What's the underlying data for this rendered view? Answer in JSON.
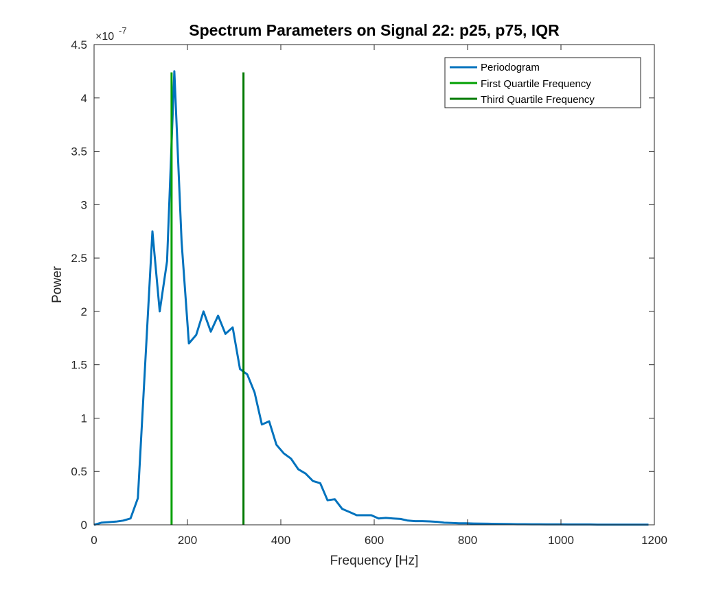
{
  "chart_data": {
    "type": "line",
    "title": "Spectrum Parameters on Signal 22: p25, p75, IQR",
    "xlabel": "Frequency [Hz]",
    "ylabel": "Power",
    "y_exponent_label": "×10",
    "y_exponent_power": "-7",
    "xlim": [
      0,
      1200
    ],
    "ylim": [
      0,
      4.5
    ],
    "x_ticks": [
      "0",
      "200",
      "400",
      "600",
      "800",
      "1000",
      "1200"
    ],
    "y_ticks": [
      "0",
      "0.5",
      "1",
      "1.5",
      "2",
      "2.5",
      "3",
      "3.5",
      "4",
      "4.5"
    ],
    "grid": false,
    "legend_position": "top-right",
    "series": [
      {
        "name": "Periodogram",
        "color": "#0072BD",
        "points": [
          [
            0,
            0.0
          ],
          [
            15.6,
            0.02
          ],
          [
            31.3,
            0.025
          ],
          [
            46.9,
            0.03
          ],
          [
            62.5,
            0.04
          ],
          [
            78.1,
            0.06
          ],
          [
            93.8,
            0.25
          ],
          [
            109.4,
            1.5
          ],
          [
            125,
            2.75
          ],
          [
            140.6,
            2.0
          ],
          [
            156.3,
            2.47
          ],
          [
            171.9,
            4.25
          ],
          [
            187.5,
            2.65
          ],
          [
            203.1,
            1.7
          ],
          [
            218.8,
            1.78
          ],
          [
            234.4,
            2.0
          ],
          [
            250,
            1.81
          ],
          [
            265.6,
            1.96
          ],
          [
            281.3,
            1.79
          ],
          [
            296.9,
            1.85
          ],
          [
            312.5,
            1.46
          ],
          [
            328.1,
            1.41
          ],
          [
            343.8,
            1.24
          ],
          [
            359.4,
            0.94
          ],
          [
            375,
            0.97
          ],
          [
            390.6,
            0.75
          ],
          [
            406.3,
            0.67
          ],
          [
            421.9,
            0.62
          ],
          [
            437.5,
            0.52
          ],
          [
            453.1,
            0.48
          ],
          [
            468.8,
            0.41
          ],
          [
            484.4,
            0.39
          ],
          [
            500,
            0.23
          ],
          [
            515.6,
            0.24
          ],
          [
            531.3,
            0.15
          ],
          [
            546.9,
            0.12
          ],
          [
            562.5,
            0.09
          ],
          [
            578.1,
            0.09
          ],
          [
            593.8,
            0.09
          ],
          [
            609.4,
            0.06
          ],
          [
            625,
            0.065
          ],
          [
            640.6,
            0.06
          ],
          [
            656.3,
            0.055
          ],
          [
            671.9,
            0.04
          ],
          [
            687.5,
            0.035
          ],
          [
            703.1,
            0.035
          ],
          [
            718.8,
            0.032
          ],
          [
            734.4,
            0.028
          ],
          [
            750,
            0.02
          ],
          [
            765.6,
            0.018
          ],
          [
            781.3,
            0.015
          ],
          [
            796.9,
            0.014
          ],
          [
            812.5,
            0.012
          ],
          [
            828.1,
            0.011
          ],
          [
            843.8,
            0.01
          ],
          [
            859.4,
            0.009
          ],
          [
            875,
            0.008
          ],
          [
            890.6,
            0.007
          ],
          [
            906.3,
            0.006
          ],
          [
            921.9,
            0.006
          ],
          [
            937.5,
            0.005
          ],
          [
            953.1,
            0.005
          ],
          [
            968.8,
            0.004
          ],
          [
            984.4,
            0.004
          ],
          [
            1000,
            0.004
          ],
          [
            1015.6,
            0.003
          ],
          [
            1031.3,
            0.003
          ],
          [
            1046.9,
            0.003
          ],
          [
            1062.5,
            0.003
          ],
          [
            1078.1,
            0.002
          ],
          [
            1093.8,
            0.002
          ],
          [
            1109.4,
            0.002
          ],
          [
            1125,
            0.002
          ],
          [
            1140.6,
            0.002
          ],
          [
            1156.3,
            0.002
          ],
          [
            1171.9,
            0.001
          ],
          [
            1187.5,
            0.001
          ]
        ]
      },
      {
        "name": "First Quartile Frequency",
        "color": "#00A000",
        "x": 166,
        "y_range": [
          0,
          4.24
        ]
      },
      {
        "name": "Third Quartile Frequency",
        "color": "#007A00",
        "x": 320,
        "y_range": [
          0,
          4.24
        ]
      }
    ]
  }
}
